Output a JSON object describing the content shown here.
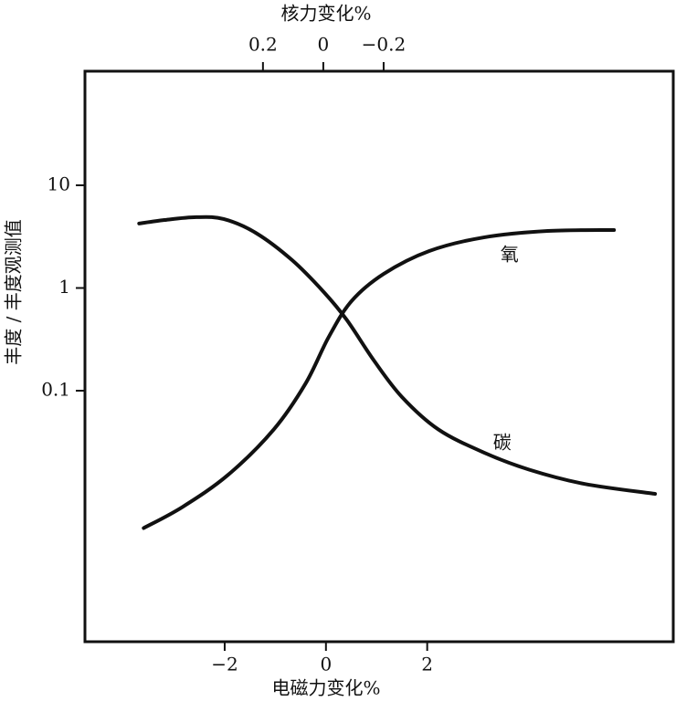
{
  "chart_data": {
    "type": "line",
    "x_label": "电磁力变化%",
    "x2_label": "核力变化%",
    "y_label": "丰度 / 丰度观测值",
    "xlim": [
      -4.76,
      6.86
    ],
    "xticks": [
      {
        "value": -2,
        "label": "−2"
      },
      0,
      2
    ],
    "x2lim": [
      0.79,
      -1.16
    ],
    "x2ticks": [
      0.2,
      0,
      {
        "value": -0.2,
        "label": "−0.2"
      }
    ],
    "ylim": [
      0.00036,
      129
    ],
    "yticks": [
      0.1,
      1,
      10
    ],
    "log_y": true,
    "grid": false,
    "series": [
      {
        "name": "碳",
        "color": "#111111",
        "x": [
          -3.69,
          -3.19,
          -2.56,
          -2.02,
          -1.39,
          -0.67,
          -0.04,
          0.41,
          0.95,
          1.5,
          2.22,
          3.12,
          4.02,
          5.1,
          6.5
        ],
        "values": [
          4.24,
          4.59,
          4.89,
          4.69,
          3.45,
          1.87,
          0.91,
          0.49,
          0.196,
          0.087,
          0.042,
          0.025,
          0.017,
          0.0124,
          0.0099
        ]
      },
      {
        "name": "氧",
        "color": "#111111",
        "x": [
          -3.6,
          -2.83,
          -1.93,
          -1.03,
          -0.4,
          0.05,
          0.5,
          1.14,
          2.04,
          3.12,
          4.38,
          5.69
        ],
        "values": [
          0.0046,
          0.0074,
          0.0152,
          0.042,
          0.118,
          0.33,
          0.74,
          1.37,
          2.29,
          3.11,
          3.59,
          3.67
        ]
      }
    ]
  }
}
